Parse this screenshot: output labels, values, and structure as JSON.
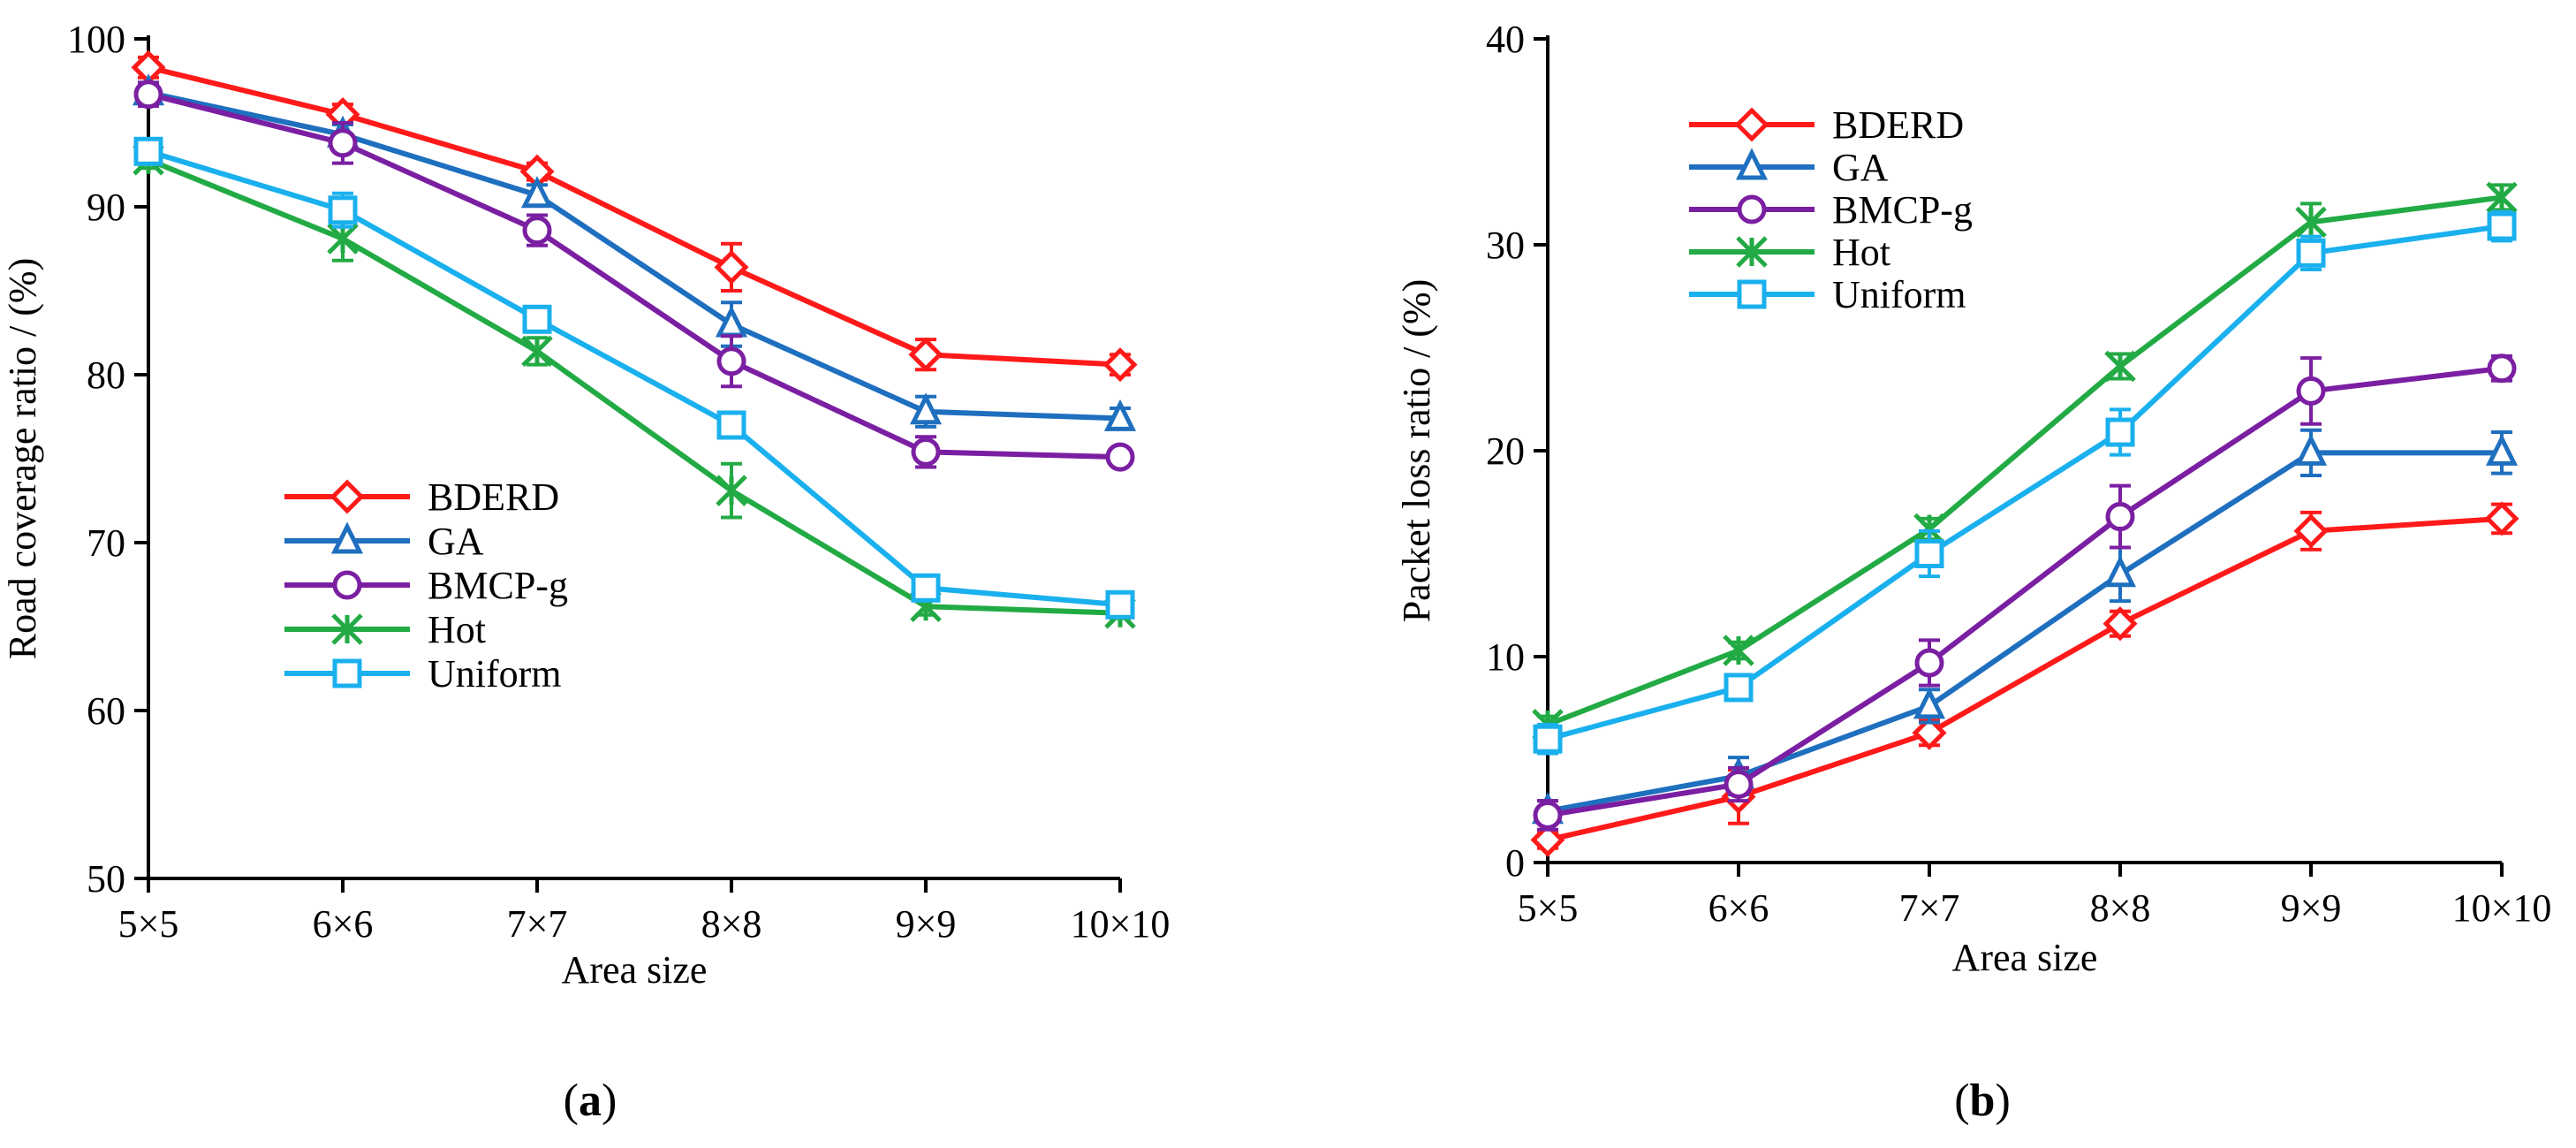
{
  "chart_data": [
    {
      "type": "line",
      "panel_label": "a",
      "categories": [
        "5×5",
        "6×6",
        "7×7",
        "8×8",
        "9×9",
        "10×10"
      ],
      "xlabel": "Area size",
      "ylabel": "Road coverage ratio / (%)",
      "ylim": [
        50,
        100
      ],
      "yticks": [
        "50",
        "60",
        "70",
        "80",
        "90",
        "100"
      ],
      "grid": false,
      "legend_position": "center-left",
      "series": [
        {
          "name": "BDERD",
          "color": "#ff1a1a",
          "marker": "diamond",
          "values": [
            98.3,
            95.5,
            92.1,
            86.4,
            81.2,
            80.6
          ],
          "errors": [
            0.6,
            0.6,
            0.5,
            1.4,
            0.9,
            0.6
          ]
        },
        {
          "name": "GA",
          "color": "#1f6fbf",
          "marker": "triangle",
          "values": [
            96.8,
            94.3,
            90.7,
            83.0,
            77.8,
            77.4
          ],
          "errors": [
            0.6,
            0.6,
            0.6,
            1.3,
            0.9,
            0.6
          ]
        },
        {
          "name": "BMCP-g",
          "color": "#7b1fa2",
          "marker": "circle",
          "values": [
            96.7,
            93.8,
            88.6,
            80.8,
            75.4,
            75.1
          ],
          "errors": [
            0.7,
            1.2,
            0.9,
            1.5,
            0.9,
            0.4
          ]
        },
        {
          "name": "Hot",
          "color": "#22aa44",
          "marker": "star",
          "values": [
            92.8,
            88.1,
            81.4,
            73.1,
            66.2,
            65.8
          ],
          "errors": [
            0.5,
            1.3,
            0.8,
            1.6,
            0.5,
            0.3
          ]
        },
        {
          "name": "Uniform",
          "color": "#1ab0ee",
          "marker": "square",
          "values": [
            93.3,
            89.8,
            83.3,
            77.0,
            67.3,
            66.3
          ],
          "errors": [
            0.7,
            1.0,
            0.6,
            0.7,
            0.6,
            0.3
          ]
        }
      ]
    },
    {
      "type": "line",
      "panel_label": "b",
      "categories": [
        "5×5",
        "6×6",
        "7×7",
        "8×8",
        "9×9",
        "10×10"
      ],
      "xlabel": "Area size",
      "ylabel": "Packet loss ratio / (%)",
      "ylim": [
        0,
        40
      ],
      "yticks": [
        "0",
        "10",
        "20",
        "30",
        "40"
      ],
      "grid": false,
      "legend_position": "top-left",
      "series": [
        {
          "name": "BDERD",
          "color": "#ff1a1a",
          "marker": "diamond",
          "values": [
            1.1,
            3.2,
            6.3,
            11.6,
            16.1,
            16.7
          ],
          "errors": [
            0.4,
            1.3,
            0.6,
            0.6,
            0.9,
            0.7
          ]
        },
        {
          "name": "GA",
          "color": "#1f6fbf",
          "marker": "triangle",
          "values": [
            2.5,
            4.2,
            7.6,
            14.0,
            19.9,
            19.9
          ],
          "errors": [
            0.5,
            0.9,
            0.8,
            1.3,
            1.1,
            1.0
          ]
        },
        {
          "name": "BMCP-g",
          "color": "#7b1fa2",
          "marker": "circle",
          "values": [
            2.3,
            3.8,
            9.7,
            16.8,
            22.9,
            24.0
          ],
          "errors": [
            0.7,
            0.8,
            1.1,
            1.5,
            1.6,
            0.6
          ]
        },
        {
          "name": "Hot",
          "color": "#22aa44",
          "marker": "star",
          "values": [
            6.7,
            10.3,
            16.2,
            24.1,
            31.1,
            32.3
          ],
          "errors": [
            0.4,
            0.4,
            0.5,
            0.6,
            0.9,
            0.6
          ]
        },
        {
          "name": "Uniform",
          "color": "#1ab0ee",
          "marker": "square",
          "values": [
            6.0,
            8.5,
            15.0,
            20.9,
            29.6,
            30.9
          ],
          "errors": [
            0.7,
            0.6,
            1.1,
            1.1,
            0.8,
            0.7
          ]
        }
      ]
    }
  ]
}
